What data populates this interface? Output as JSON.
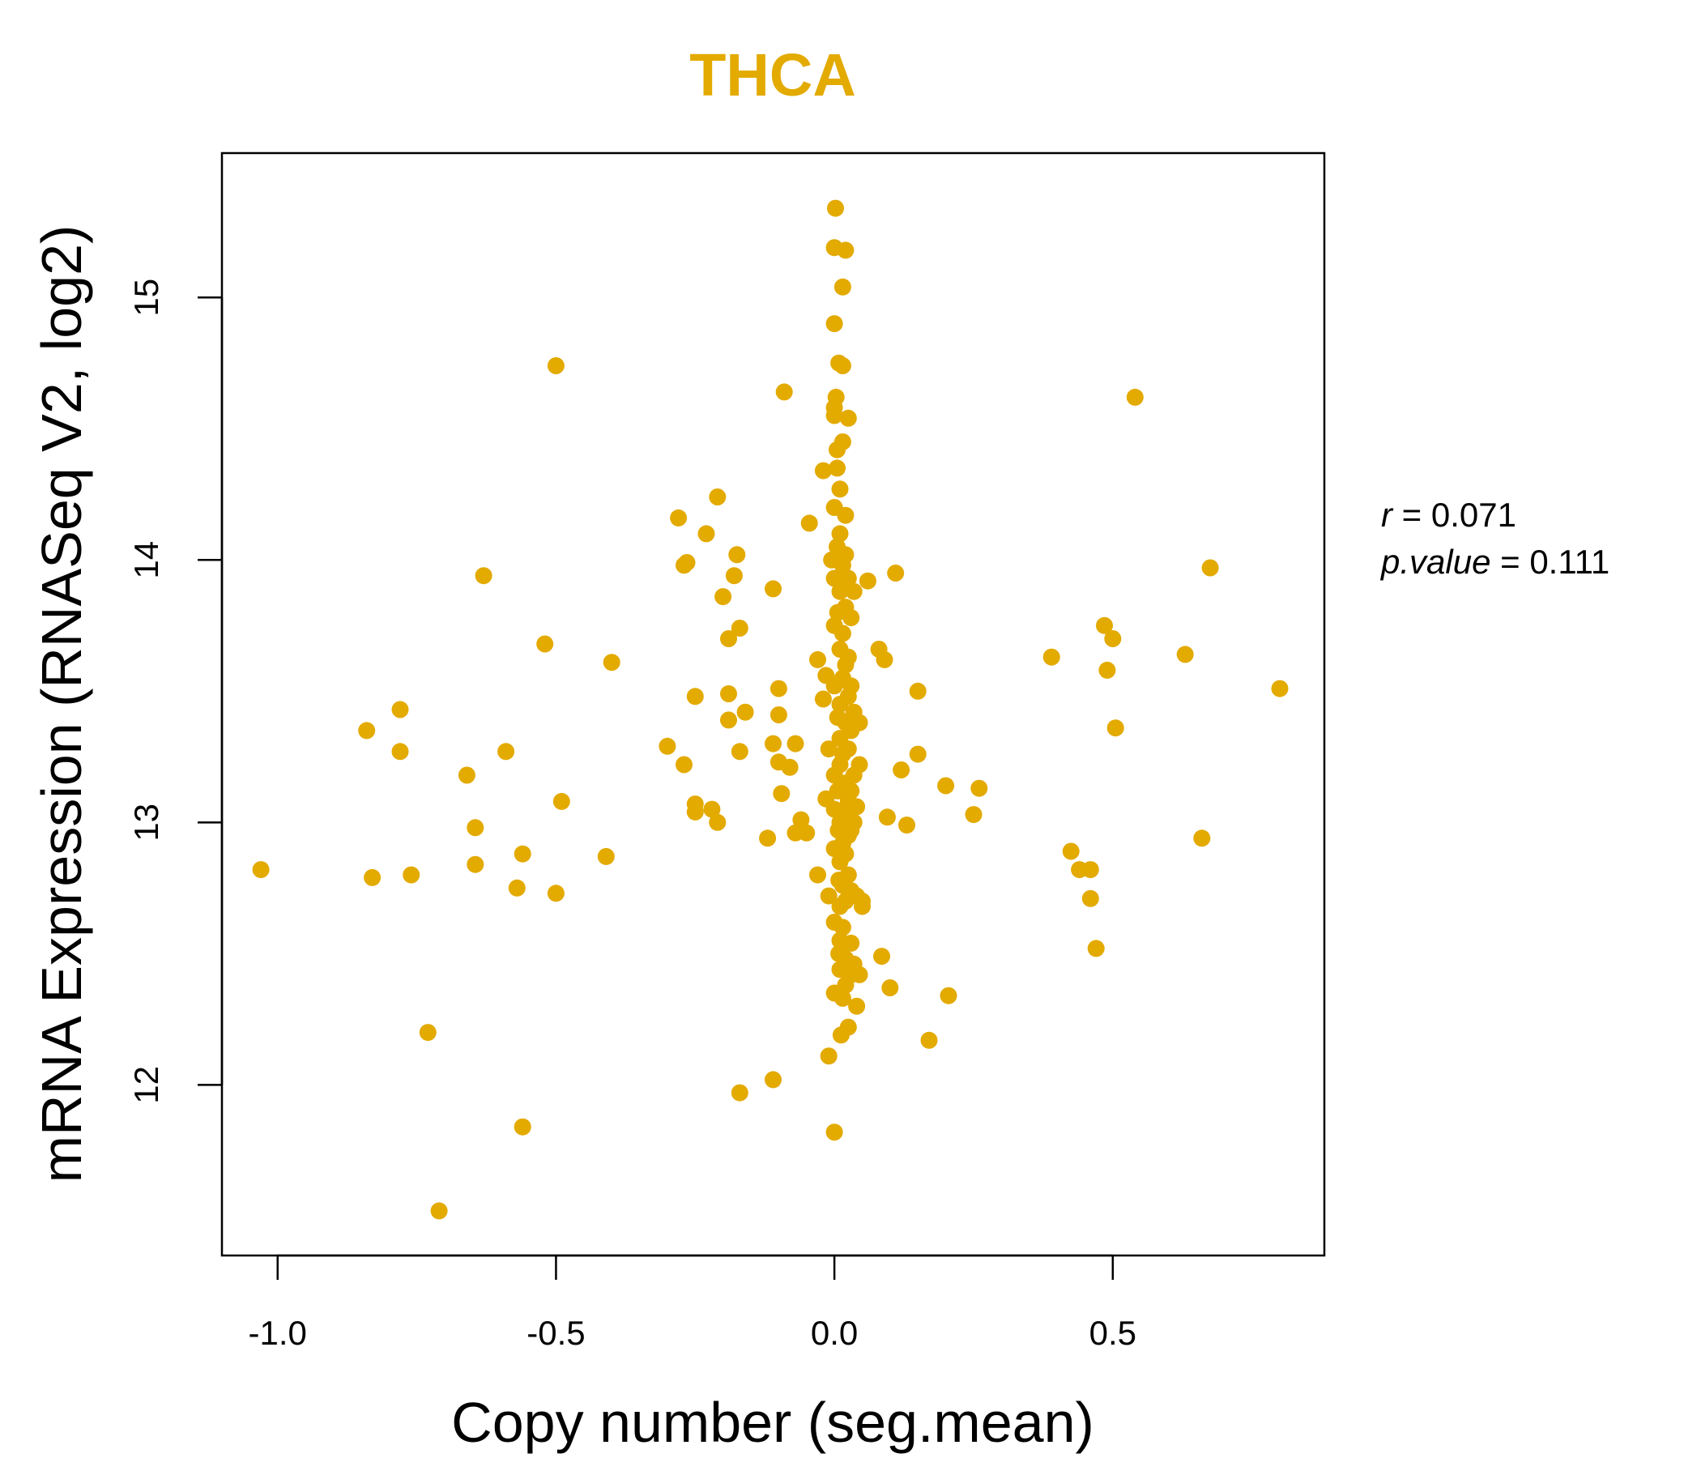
{
  "chart_data": {
    "type": "scatter",
    "title": "THCA",
    "title_color": "#E3AA00",
    "point_color": "#E3AA00",
    "xlabel": "Copy number (seg.mean)",
    "ylabel": "mRNA Expression (RNASeq V2, log2)",
    "xlim": [
      -1.1,
      0.88
    ],
    "ylim": [
      11.35,
      15.55
    ],
    "x_ticks": [
      -1.0,
      -0.5,
      0.0,
      0.5
    ],
    "x_tick_labels": [
      "-1.0",
      "-0.5",
      "0.0",
      "0.5"
    ],
    "y_ticks": [
      12,
      13,
      14,
      15
    ],
    "y_tick_labels": [
      "12",
      "13",
      "14",
      "15"
    ],
    "grid": false,
    "stats": {
      "r_label": "r",
      "r_value": "0.071",
      "p_label": "p.value",
      "p_value": "0.111"
    },
    "points": [
      [
        -1.03,
        12.82
      ],
      [
        -0.84,
        13.35
      ],
      [
        -0.83,
        12.79
      ],
      [
        -0.78,
        13.43
      ],
      [
        -0.78,
        13.27
      ],
      [
        -0.76,
        12.8
      ],
      [
        -0.73,
        12.2
      ],
      [
        -0.71,
        11.52
      ],
      [
        -0.66,
        13.18
      ],
      [
        -0.645,
        12.98
      ],
      [
        -0.645,
        12.84
      ],
      [
        -0.63,
        13.94
      ],
      [
        -0.59,
        13.27
      ],
      [
        -0.57,
        12.75
      ],
      [
        -0.56,
        12.88
      ],
      [
        -0.56,
        11.84
      ],
      [
        -0.52,
        13.68
      ],
      [
        -0.5,
        14.74
      ],
      [
        -0.5,
        12.73
      ],
      [
        -0.49,
        13.08
      ],
      [
        -0.41,
        12.87
      ],
      [
        -0.4,
        13.61
      ],
      [
        -0.3,
        13.29
      ],
      [
        -0.28,
        14.16
      ],
      [
        -0.27,
        13.22
      ],
      [
        -0.27,
        13.98
      ],
      [
        -0.265,
        13.99
      ],
      [
        -0.25,
        13.48
      ],
      [
        -0.25,
        13.07
      ],
      [
        -0.25,
        13.04
      ],
      [
        -0.23,
        14.1
      ],
      [
        -0.22,
        13.05
      ],
      [
        -0.21,
        14.24
      ],
      [
        -0.21,
        13.0
      ],
      [
        -0.2,
        13.86
      ],
      [
        -0.19,
        13.7
      ],
      [
        -0.19,
        13.49
      ],
      [
        -0.19,
        13.39
      ],
      [
        -0.18,
        13.94
      ],
      [
        -0.175,
        14.02
      ],
      [
        -0.17,
        13.74
      ],
      [
        -0.17,
        13.27
      ],
      [
        -0.17,
        11.97
      ],
      [
        -0.16,
        13.42
      ],
      [
        -0.12,
        12.94
      ],
      [
        -0.11,
        13.89
      ],
      [
        -0.11,
        13.3
      ],
      [
        -0.11,
        12.02
      ],
      [
        -0.1,
        13.51
      ],
      [
        -0.1,
        13.41
      ],
      [
        -0.1,
        13.23
      ],
      [
        -0.095,
        13.11
      ],
      [
        -0.09,
        14.64
      ],
      [
        -0.08,
        13.21
      ],
      [
        -0.07,
        13.3
      ],
      [
        -0.07,
        12.96
      ],
      [
        -0.06,
        13.01
      ],
      [
        -0.05,
        12.96
      ],
      [
        -0.045,
        14.14
      ],
      [
        -0.03,
        13.62
      ],
      [
        -0.03,
        12.8
      ],
      [
        -0.02,
        13.47
      ],
      [
        -0.02,
        14.34
      ],
      [
        -0.015,
        13.56
      ],
      [
        -0.015,
        13.09
      ],
      [
        -0.01,
        12.72
      ],
      [
        -0.01,
        13.28
      ],
      [
        -0.01,
        12.11
      ],
      [
        -0.005,
        14.0
      ],
      [
        0.0,
        15.19
      ],
      [
        0.0,
        14.9
      ],
      [
        0.0,
        14.58
      ],
      [
        0.0,
        14.55
      ],
      [
        0.0,
        14.2
      ],
      [
        0.0,
        13.93
      ],
      [
        0.0,
        13.75
      ],
      [
        0.0,
        13.52
      ],
      [
        0.0,
        13.18
      ],
      [
        0.0,
        13.05
      ],
      [
        0.0,
        12.9
      ],
      [
        0.0,
        12.62
      ],
      [
        0.0,
        12.35
      ],
      [
        0.0,
        11.82
      ],
      [
        0.002,
        15.34
      ],
      [
        0.003,
        14.62
      ],
      [
        0.005,
        14.42
      ],
      [
        0.005,
        14.35
      ],
      [
        0.005,
        14.05
      ],
      [
        0.006,
        13.8
      ],
      [
        0.006,
        13.4
      ],
      [
        0.006,
        13.12
      ],
      [
        0.007,
        12.97
      ],
      [
        0.008,
        12.78
      ],
      [
        0.008,
        12.5
      ],
      [
        0.008,
        14.75
      ],
      [
        0.01,
        14.27
      ],
      [
        0.01,
        14.1
      ],
      [
        0.01,
        13.88
      ],
      [
        0.01,
        13.66
      ],
      [
        0.01,
        13.45
      ],
      [
        0.01,
        13.32
      ],
      [
        0.01,
        13.22
      ],
      [
        0.01,
        13.0
      ],
      [
        0.01,
        12.85
      ],
      [
        0.01,
        12.68
      ],
      [
        0.01,
        12.55
      ],
      [
        0.01,
        12.44
      ],
      [
        0.012,
        12.19
      ],
      [
        0.015,
        14.74
      ],
      [
        0.015,
        15.04
      ],
      [
        0.015,
        14.45
      ],
      [
        0.015,
        13.98
      ],
      [
        0.015,
        13.72
      ],
      [
        0.015,
        13.55
      ],
      [
        0.015,
        13.26
      ],
      [
        0.015,
        12.92
      ],
      [
        0.015,
        12.76
      ],
      [
        0.015,
        12.6
      ],
      [
        0.015,
        12.33
      ],
      [
        0.02,
        15.18
      ],
      [
        0.02,
        14.17
      ],
      [
        0.02,
        14.02
      ],
      [
        0.02,
        13.82
      ],
      [
        0.02,
        13.6
      ],
      [
        0.02,
        13.38
      ],
      [
        0.02,
        13.15
      ],
      [
        0.02,
        13.03
      ],
      [
        0.02,
        12.88
      ],
      [
        0.02,
        12.7
      ],
      [
        0.02,
        12.48
      ],
      [
        0.02,
        12.38
      ],
      [
        0.025,
        12.22
      ],
      [
        0.025,
        14.54
      ],
      [
        0.025,
        13.93
      ],
      [
        0.025,
        13.63
      ],
      [
        0.025,
        13.48
      ],
      [
        0.025,
        13.28
      ],
      [
        0.025,
        13.08
      ],
      [
        0.025,
        12.95
      ],
      [
        0.025,
        12.8
      ],
      [
        0.03,
        13.78
      ],
      [
        0.03,
        13.52
      ],
      [
        0.03,
        13.35
      ],
      [
        0.03,
        13.12
      ],
      [
        0.03,
        12.97
      ],
      [
        0.03,
        12.74
      ],
      [
        0.03,
        12.54
      ],
      [
        0.03,
        12.42
      ],
      [
        0.035,
        13.88
      ],
      [
        0.035,
        13.42
      ],
      [
        0.035,
        13.18
      ],
      [
        0.035,
        13.0
      ],
      [
        0.035,
        12.46
      ],
      [
        0.04,
        12.3
      ],
      [
        0.04,
        12.72
      ],
      [
        0.04,
        13.06
      ],
      [
        0.045,
        13.38
      ],
      [
        0.045,
        13.22
      ],
      [
        0.045,
        12.42
      ],
      [
        0.05,
        12.7
      ],
      [
        0.05,
        12.68
      ],
      [
        0.06,
        13.92
      ],
      [
        0.08,
        13.66
      ],
      [
        0.085,
        12.49
      ],
      [
        0.09,
        13.62
      ],
      [
        0.095,
        13.02
      ],
      [
        0.1,
        12.37
      ],
      [
        0.11,
        13.95
      ],
      [
        0.12,
        13.2
      ],
      [
        0.13,
        12.99
      ],
      [
        0.15,
        13.5
      ],
      [
        0.15,
        13.26
      ],
      [
        0.17,
        12.17
      ],
      [
        0.2,
        13.14
      ],
      [
        0.205,
        12.34
      ],
      [
        0.25,
        13.03
      ],
      [
        0.26,
        13.13
      ],
      [
        0.39,
        13.63
      ],
      [
        0.425,
        12.89
      ],
      [
        0.44,
        12.82
      ],
      [
        0.46,
        12.82
      ],
      [
        0.46,
        12.71
      ],
      [
        0.47,
        12.52
      ],
      [
        0.485,
        13.75
      ],
      [
        0.49,
        13.58
      ],
      [
        0.5,
        13.7
      ],
      [
        0.505,
        13.36
      ],
      [
        0.54,
        14.62
      ],
      [
        0.63,
        13.64
      ],
      [
        0.66,
        12.94
      ],
      [
        0.675,
        13.97
      ],
      [
        0.8,
        13.51
      ]
    ]
  }
}
